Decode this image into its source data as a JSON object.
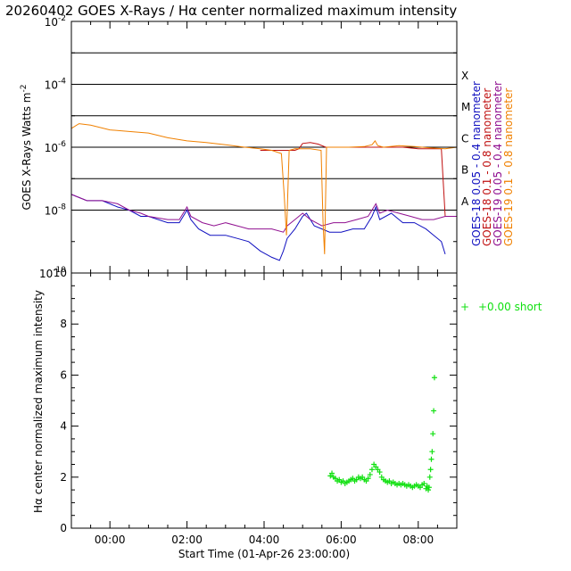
{
  "title": "20260402 GOES X-Rays / Hα center normalized maximum intensity",
  "colors": {
    "goes18_short": "#1010c0",
    "goes18_long": "#c01010",
    "goes19_short": "#901090",
    "goes19_long": "#f08000",
    "halpha": "#10e010",
    "axes": "#000000"
  },
  "chart_data": [
    {
      "type": "line",
      "name": "goes-xray-flux",
      "ylabel": "GOES X-Rays Watts m",
      "ylabel_superscript": "-2",
      "yscale": "log",
      "ylim_exp": [
        -10,
        -2
      ],
      "ytick_exps": [
        -10,
        -8,
        -6,
        -4,
        -2
      ],
      "ytick_labels": [
        {
          "base": "10",
          "exp": "-10"
        },
        {
          "base": "10",
          "exp": "-8"
        },
        {
          "base": "10",
          "exp": "-6"
        },
        {
          "base": "10",
          "exp": "-4"
        },
        {
          "base": "10",
          "exp": "-2"
        }
      ],
      "class_lines_exp": [
        -8,
        -7,
        -6,
        -5,
        -4,
        -3
      ],
      "class_labels": [
        {
          "label": "A",
          "exp": -7.7
        },
        {
          "label": "B",
          "exp": -6.7
        },
        {
          "label": "C",
          "exp": -5.7
        },
        {
          "label": "M",
          "exp": -4.7
        },
        {
          "label": "X",
          "exp": -3.7
        }
      ],
      "xlim_hours": [
        -1.0,
        9.0
      ],
      "series": [
        {
          "name": "GOES-18 0.05 - 0.4 nanometer",
          "color_key": "goes18_short",
          "x": [
            -1.0,
            -0.6,
            -0.2,
            0.2,
            0.5,
            0.8,
            1.0,
            1.5,
            1.8,
            2.0,
            2.1,
            2.3,
            2.6,
            3.0,
            3.3,
            3.6,
            3.9,
            4.2,
            4.4,
            4.5,
            4.6,
            4.8,
            5.0,
            5.1,
            5.3,
            5.5,
            5.7,
            6.0,
            6.3,
            6.6,
            6.8,
            6.9,
            7.0,
            7.3,
            7.6,
            7.9,
            8.2,
            8.4,
            8.6,
            8.7
          ],
          "y_exp": [
            -7.5,
            -7.7,
            -7.7,
            -7.9,
            -8.0,
            -8.2,
            -8.2,
            -8.4,
            -8.4,
            -8.0,
            -8.3,
            -8.6,
            -8.8,
            -8.8,
            -8.9,
            -9.0,
            -9.3,
            -9.5,
            -9.6,
            -9.3,
            -8.9,
            -8.6,
            -8.2,
            -8.1,
            -8.5,
            -8.6,
            -8.7,
            -8.7,
            -8.6,
            -8.6,
            -8.2,
            -7.9,
            -8.3,
            -8.1,
            -8.4,
            -8.4,
            -8.6,
            -8.8,
            -9.0,
            -9.4
          ]
        },
        {
          "name": "GOES-18 0.1 - 0.8 nanometer",
          "color_key": "goes18_long",
          "x": [
            3.9,
            4.2,
            4.5,
            4.8,
            4.9,
            5.0,
            5.2,
            5.4,
            5.6,
            5.8,
            6.0,
            6.4,
            6.8,
            7.2,
            7.6,
            8.0,
            8.3,
            8.5,
            8.6,
            8.7
          ],
          "y_exp": [
            -6.1,
            -6.1,
            -6.1,
            -6.1,
            -6.05,
            -5.88,
            -5.85,
            -5.9,
            -6.0,
            -6.0,
            -6.0,
            -6.0,
            -6.0,
            -6.0,
            -6.0,
            -6.05,
            -6.05,
            -6.05,
            -6.05,
            -8.2
          ]
        },
        {
          "name": "GOES-19 0.05 - 0.4 nanometer",
          "color_key": "goes19_short",
          "x": [
            -1.0,
            -0.6,
            -0.2,
            0.2,
            0.5,
            0.8,
            1.0,
            1.5,
            1.8,
            2.0,
            2.1,
            2.4,
            2.7,
            3.0,
            3.3,
            3.6,
            3.9,
            4.2,
            4.5,
            4.6,
            4.8,
            5.0,
            5.2,
            5.5,
            5.8,
            6.1,
            6.4,
            6.7,
            6.9,
            7.0,
            7.2,
            7.5,
            7.8,
            8.1,
            8.4,
            8.7,
            9.0
          ],
          "y_exp": [
            -7.5,
            -7.7,
            -7.7,
            -7.8,
            -8.0,
            -8.1,
            -8.2,
            -8.3,
            -8.3,
            -7.9,
            -8.2,
            -8.4,
            -8.5,
            -8.4,
            -8.5,
            -8.6,
            -8.6,
            -8.6,
            -8.7,
            -8.5,
            -8.3,
            -8.1,
            -8.3,
            -8.5,
            -8.4,
            -8.4,
            -8.3,
            -8.2,
            -7.8,
            -8.1,
            -8.0,
            -8.1,
            -8.2,
            -8.3,
            -8.3,
            -8.2,
            -8.2
          ]
        },
        {
          "name": "GOES-19 0.1 - 0.8 nanometer",
          "color_key": "goes19_long",
          "x": [
            -1.0,
            -0.8,
            -0.5,
            0.0,
            0.5,
            1.0,
            1.5,
            2.0,
            2.5,
            3.0,
            3.5,
            3.9,
            4.2,
            4.45,
            4.52,
            4.58,
            4.65,
            4.8,
            5.2,
            5.48,
            5.53,
            5.57,
            5.62,
            5.8,
            6.2,
            6.6,
            6.8,
            6.88,
            6.95,
            7.1,
            7.5,
            7.9,
            8.3,
            8.7,
            9.0
          ],
          "y_exp": [
            -5.4,
            -5.25,
            -5.3,
            -5.45,
            -5.5,
            -5.55,
            -5.7,
            -5.8,
            -5.85,
            -5.92,
            -6.0,
            -6.05,
            -6.1,
            -6.2,
            -7.5,
            -8.8,
            -6.1,
            -6.05,
            -6.05,
            -6.1,
            -8.4,
            -9.4,
            -6.0,
            -6.0,
            -6.0,
            -5.98,
            -5.92,
            -5.8,
            -5.95,
            -6.0,
            -5.95,
            -5.98,
            -6.02,
            -6.05,
            -6.0
          ]
        }
      ],
      "legend": [
        {
          "text": "GOES-18 0.05 - 0.4 nanometer",
          "color_key": "goes18_short"
        },
        {
          "text": "GOES-18 0.1 - 0.8 nanometer",
          "color_key": "goes18_long"
        },
        {
          "text": "GOES-19 0.05 - 0.4 nanometer",
          "color_key": "goes19_short"
        },
        {
          "text": "GOES-19 0.1 - 0.8 nanometer",
          "color_key": "goes19_long"
        }
      ]
    },
    {
      "type": "scatter",
      "name": "halpha-intensity",
      "ylabel": "Hα center normalized maximum intensity",
      "xlabel": "Start Time (01-Apr-26 23:00:00)",
      "ylim": [
        0,
        10
      ],
      "yticks": [
        0,
        2,
        4,
        6,
        8,
        10
      ],
      "xlim_hours": [
        -1.0,
        9.0
      ],
      "xticks_hours": [
        0,
        2,
        4,
        6,
        8
      ],
      "xtick_labels": [
        "00:00",
        "02:00",
        "04:00",
        "06:00",
        "08:00"
      ],
      "marker": "+",
      "legend_entry": {
        "marker": "+",
        "text": "+0.00 short"
      },
      "x": [
        5.72,
        5.76,
        5.8,
        5.85,
        5.9,
        5.95,
        6.0,
        6.05,
        6.1,
        6.15,
        6.2,
        6.25,
        6.3,
        6.35,
        6.4,
        6.45,
        6.5,
        6.55,
        6.6,
        6.65,
        6.7,
        6.75,
        6.8,
        6.85,
        6.9,
        6.95,
        7.0,
        7.05,
        7.1,
        7.15,
        7.2,
        7.25,
        7.3,
        7.35,
        7.4,
        7.45,
        7.5,
        7.55,
        7.6,
        7.65,
        7.7,
        7.75,
        7.8,
        7.85,
        7.9,
        7.95,
        8.0,
        8.05,
        8.1,
        8.15,
        8.2,
        8.23,
        8.26,
        8.28,
        8.3,
        8.32,
        8.34,
        8.36,
        8.38,
        8.4,
        8.42
      ],
      "y": [
        2.05,
        2.15,
        2.0,
        1.95,
        1.85,
        1.9,
        1.8,
        1.85,
        1.75,
        1.8,
        1.85,
        1.9,
        1.95,
        1.85,
        1.9,
        2.0,
        1.95,
        2.0,
        1.9,
        1.85,
        1.95,
        2.1,
        2.3,
        2.5,
        2.4,
        2.3,
        2.2,
        2.0,
        1.9,
        1.85,
        1.8,
        1.85,
        1.75,
        1.8,
        1.75,
        1.7,
        1.75,
        1.7,
        1.75,
        1.7,
        1.65,
        1.7,
        1.65,
        1.6,
        1.65,
        1.7,
        1.65,
        1.6,
        1.7,
        1.75,
        1.55,
        1.65,
        1.5,
        1.6,
        2.0,
        2.3,
        2.7,
        3.0,
        3.7,
        4.6,
        5.9
      ]
    }
  ]
}
